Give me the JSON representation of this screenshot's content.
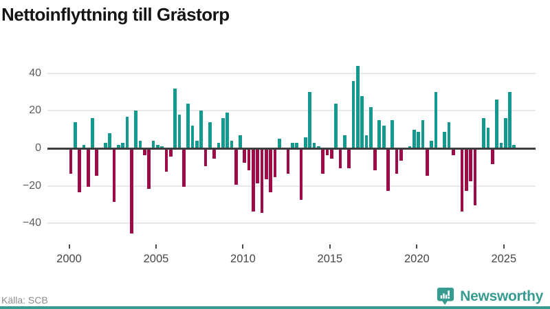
{
  "title": "Nettoinflyttning till Grästorp",
  "source": "Källa: SCB",
  "brand": {
    "name": "Newsworthy",
    "color": "#379B91"
  },
  "colors": {
    "positive": "#14998F",
    "negative": "#9D0C49",
    "grid": "#E8E8E8",
    "zero_line": "#3C3C3C",
    "y_label": "#5A5A5A",
    "x_label": "#474747",
    "tick": "#4A4A4A",
    "title_text": "#151515",
    "source_text": "#8C8C8C",
    "background": "#FFFFFF"
  },
  "chart_data": {
    "type": "bar",
    "title": "Nettoinflyttning till Grästorp",
    "xlabel": "",
    "ylabel": "",
    "frequency": "quarterly",
    "start_period": "2000 Q1",
    "end_period": "2025 Q3",
    "grid": true,
    "ylim": [
      -48,
      48
    ],
    "y_ticks": [
      40,
      20,
      0,
      -20,
      -40
    ],
    "y_tick_labels": [
      "40",
      "20",
      "0",
      "−20",
      "−40"
    ],
    "x_tick_years": [
      2000,
      2005,
      2010,
      2015,
      2020,
      2025
    ],
    "x_tick_labels": [
      "2000",
      "2005",
      "2010",
      "2015",
      "2020",
      "2025"
    ],
    "values": [
      -13,
      14,
      -23,
      2,
      -20,
      16,
      -14,
      0,
      3,
      8,
      -28,
      2,
      3,
      17,
      -45,
      20,
      4,
      -3,
      -21,
      4,
      2,
      1,
      -12,
      -4,
      32,
      18,
      -20,
      24,
      12,
      4,
      20,
      -9,
      14,
      -5,
      3,
      16,
      19,
      4,
      -19,
      7,
      -7,
      -11,
      -33,
      -18,
      -34,
      -16,
      -23,
      -15,
      5,
      0,
      -13,
      3,
      3,
      -27,
      6,
      30,
      3,
      1,
      -13,
      -3,
      -5,
      24,
      -10,
      7,
      -10,
      36,
      44,
      28,
      7,
      22,
      -11,
      15,
      12,
      -22,
      15,
      -13,
      -6,
      0,
      1,
      10,
      9,
      15,
      -14,
      4,
      30,
      0,
      9,
      14,
      -3,
      0,
      -33,
      -22,
      -17,
      -30,
      0,
      16,
      11,
      -8,
      26,
      3,
      16,
      30,
      2
    ]
  }
}
